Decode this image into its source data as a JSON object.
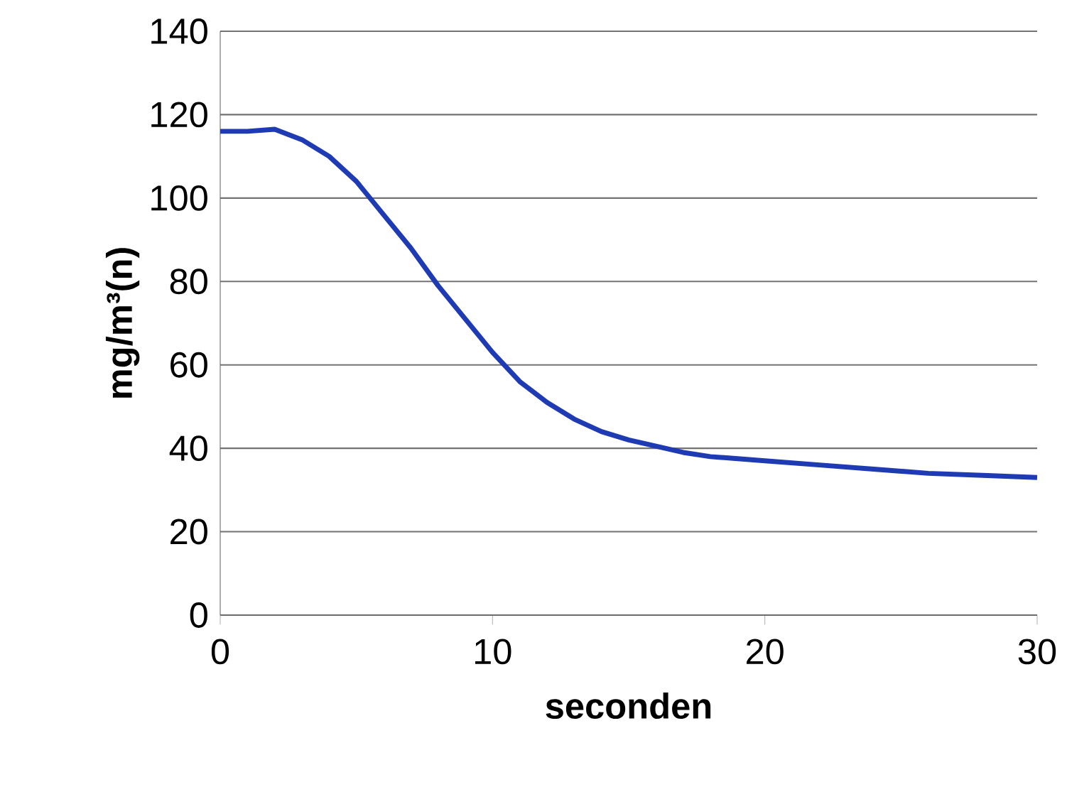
{
  "chart_data": {
    "type": "line",
    "xlabel": "seconden",
    "ylabel": "mg/m³(n)",
    "x": [
      0,
      1,
      2,
      3,
      4,
      5,
      6,
      7,
      8,
      9,
      10,
      11,
      12,
      13,
      14,
      15,
      16,
      17,
      18,
      19,
      20,
      22,
      24,
      26,
      28,
      30
    ],
    "series": [
      {
        "color": "#1f3bb3",
        "values": [
          116,
          116,
          116.5,
          114,
          110,
          104,
          96,
          88,
          79,
          71,
          63,
          56,
          51,
          47,
          44,
          42,
          40.5,
          39,
          38,
          37.5,
          37,
          36,
          35,
          34,
          33.5,
          33
        ]
      }
    ],
    "xlim": [
      0,
      30
    ],
    "ylim": [
      0,
      140
    ],
    "xticks": [
      0,
      10,
      20,
      30
    ],
    "yticks": [
      0,
      20,
      40,
      60,
      80,
      100,
      120,
      140
    ],
    "grid": "y",
    "legend": false,
    "marker": "none",
    "line_style": "solid"
  }
}
